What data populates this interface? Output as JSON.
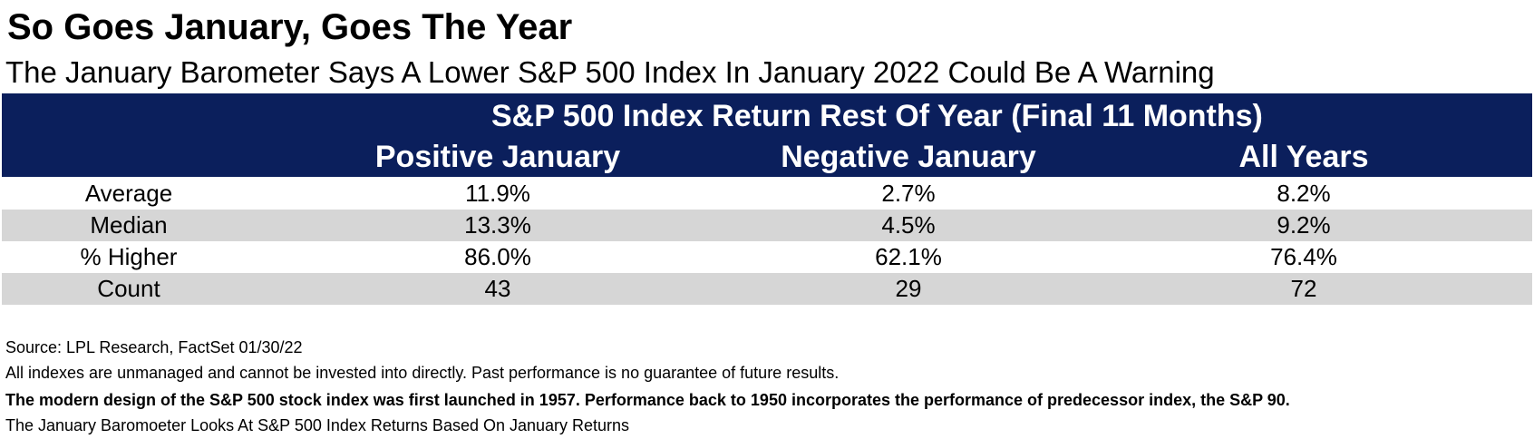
{
  "title": "So Goes January, Goes The Year",
  "subtitle": "The January Barometer Says A Lower S&P 500 Index In January 2022 Could Be A Warning",
  "table": {
    "group_header": "S&P 500 Index Return Rest Of Year (Final 11 Months)",
    "columns": [
      "Positive January",
      "Negative January",
      "All Years"
    ],
    "rows": [
      {
        "label": "Average",
        "values": [
          "11.9%",
          "2.7%",
          "8.2%"
        ]
      },
      {
        "label": "Median",
        "values": [
          "13.3%",
          "4.5%",
          "9.2%"
        ]
      },
      {
        "label": "% Higher",
        "values": [
          "86.0%",
          "62.1%",
          "76.4%"
        ]
      },
      {
        "label": "Count",
        "values": [
          "43",
          "29",
          "72"
        ]
      }
    ]
  },
  "notes": [
    "Source: LPL Research, FactSet 01/30/22",
    "All indexes are unmanaged and cannot be invested into directly. Past performance is no guarantee of future results.",
    "The modern design of the S&P 500 stock index was first launched in 1957. Performance back to 1950 incorporates the performance of predecessor index, the S&P 90.",
    "The January Baromoeter Looks At S&P 500 Index Returns Based On January Returns"
  ],
  "colors": {
    "header_bg": "#0b1f5c",
    "header_text": "#ffffff",
    "shaded_row": "#d6d6d6"
  }
}
